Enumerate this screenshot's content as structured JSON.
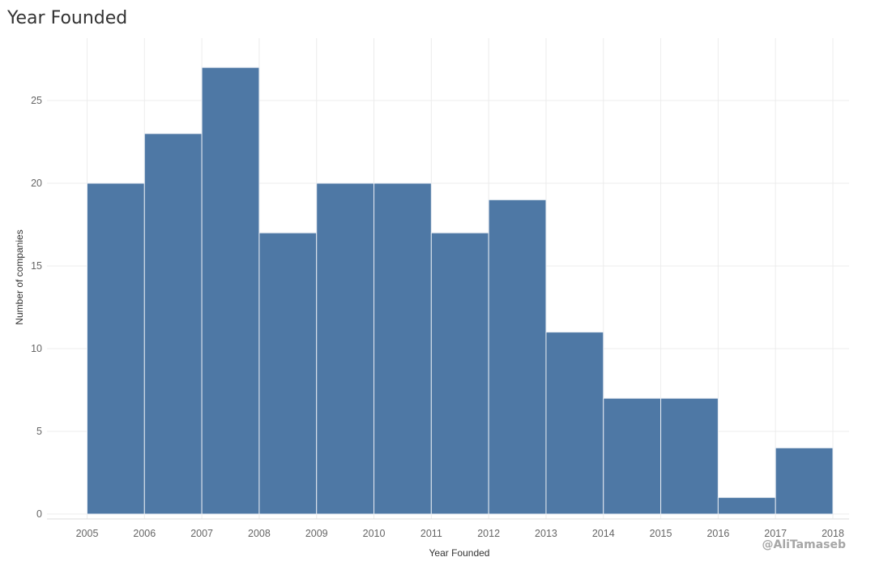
{
  "page": {
    "title": "Year Founded"
  },
  "watermark": "@AliTamaseb",
  "colors": {
    "bar": "#4e78a5",
    "bar_edge": "#e6ebf2",
    "grid": "#ececec"
  },
  "chart_data": {
    "type": "bar",
    "title": "Year Founded",
    "xlabel": "Year Founded",
    "ylabel": "Number of companies",
    "bin_edges": [
      2005,
      2006,
      2007,
      2008,
      2009,
      2010,
      2011,
      2012,
      2013,
      2014,
      2015,
      2016,
      2017,
      2018
    ],
    "x_ticks": [
      "2005",
      "2006",
      "2007",
      "2008",
      "2009",
      "2010",
      "2011",
      "2012",
      "2013",
      "2014",
      "2015",
      "2016",
      "2017",
      "2018"
    ],
    "categories": [
      "2005",
      "2006",
      "2007",
      "2008",
      "2009",
      "2010",
      "2011",
      "2012",
      "2013",
      "2014",
      "2015",
      "2016",
      "2017"
    ],
    "values": [
      20,
      23,
      27,
      17,
      20,
      20,
      17,
      19,
      11,
      7,
      7,
      1,
      4
    ],
    "y_ticks": [
      0,
      5,
      10,
      15,
      20,
      25
    ],
    "ylim": [
      0,
      29.4
    ],
    "grid": true
  }
}
